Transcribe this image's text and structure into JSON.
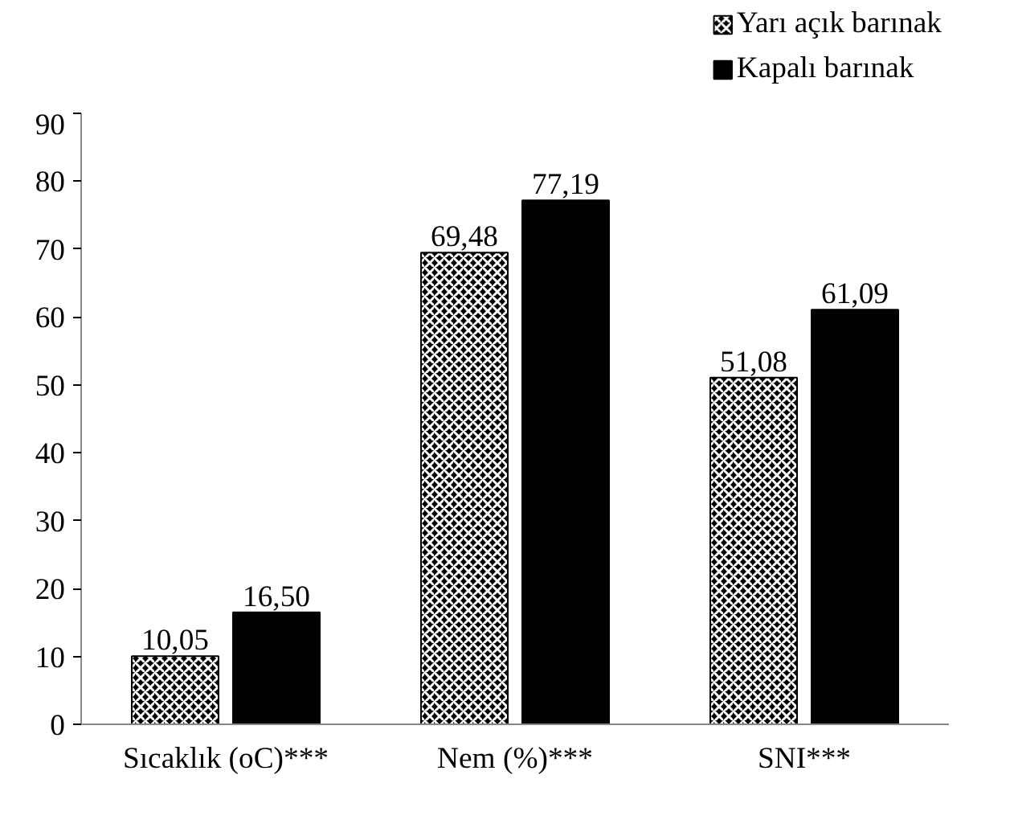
{
  "chart_data": {
    "type": "bar",
    "categories": [
      "Sıcaklık (oC)***",
      "Nem (%)***",
      "SNI***"
    ],
    "series": [
      {
        "name": "Yarı açık barınak",
        "color": "#000000",
        "values": [
          10.05,
          69.48,
          51.08
        ]
      },
      {
        "name": "Kapalı barınak",
        "color": "#000000",
        "values": [
          16.5,
          77.19,
          61.09
        ]
      }
    ],
    "value_labels": [
      [
        "10,05",
        "69,48",
        "51,08"
      ],
      [
        "16,50",
        "77,19",
        "61,09"
      ]
    ],
    "ylim": [
      0,
      90
    ],
    "yticks": [
      0,
      10,
      20,
      30,
      40,
      50,
      60,
      70,
      80,
      90
    ],
    "grid": false,
    "legend": "top right"
  }
}
